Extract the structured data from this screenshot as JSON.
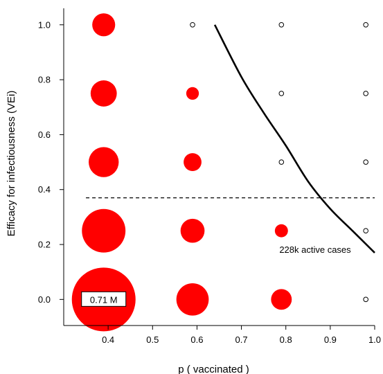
{
  "chart_data": {
    "type": "scatter",
    "title": "",
    "xlabel": "p ( vaccinated )",
    "ylabel": "Efficacy for infectiousness (VEi)",
    "xlim": [
      0.3,
      1.0
    ],
    "ylim": [
      -0.095,
      1.06
    ],
    "x_ticks": [
      "0.4",
      "0.5",
      "0.6",
      "0.7",
      "0.8",
      "0.9",
      "1.0"
    ],
    "y_ticks": [
      "0.0",
      "0.2",
      "0.4",
      "0.6",
      "0.8",
      "1.0"
    ],
    "grid": false,
    "colors": {
      "filled": "#ff0000",
      "open": "#000000",
      "curve": "#000000"
    },
    "size_encoding": "circle area proportional to active cases",
    "points": [
      {
        "x": 0.39,
        "y": 1.0,
        "cases_k": 92,
        "marker": "filled"
      },
      {
        "x": 0.39,
        "y": 0.75,
        "cases_k": 120,
        "marker": "filled"
      },
      {
        "x": 0.39,
        "y": 0.5,
        "cases_k": 158,
        "marker": "filled"
      },
      {
        "x": 0.39,
        "y": 0.25,
        "cases_k": 332,
        "marker": "filled"
      },
      {
        "x": 0.39,
        "y": 0.0,
        "cases_k": 710,
        "marker": "filled"
      },
      {
        "x": 0.59,
        "y": 1.0,
        "cases_k": 0,
        "marker": "open"
      },
      {
        "x": 0.59,
        "y": 0.75,
        "cases_k": 28,
        "marker": "filled"
      },
      {
        "x": 0.59,
        "y": 0.5,
        "cases_k": 56,
        "marker": "filled"
      },
      {
        "x": 0.59,
        "y": 0.25,
        "cases_k": 101,
        "marker": "filled"
      },
      {
        "x": 0.59,
        "y": 0.0,
        "cases_k": 183,
        "marker": "filled"
      },
      {
        "x": 0.79,
        "y": 1.0,
        "cases_k": 0,
        "marker": "open"
      },
      {
        "x": 0.79,
        "y": 0.75,
        "cases_k": 0,
        "marker": "open"
      },
      {
        "x": 0.79,
        "y": 0.5,
        "cases_k": 0,
        "marker": "open"
      },
      {
        "x": 0.79,
        "y": 0.25,
        "cases_k": 30,
        "marker": "filled"
      },
      {
        "x": 0.79,
        "y": 0.0,
        "cases_k": 75,
        "marker": "filled"
      },
      {
        "x": 0.98,
        "y": 1.0,
        "cases_k": 0,
        "marker": "open"
      },
      {
        "x": 0.98,
        "y": 0.75,
        "cases_k": 0,
        "marker": "open"
      },
      {
        "x": 0.98,
        "y": 0.5,
        "cases_k": 0,
        "marker": "open"
      },
      {
        "x": 0.98,
        "y": 0.25,
        "cases_k": 0,
        "marker": "open"
      },
      {
        "x": 0.98,
        "y": 0.0,
        "cases_k": 0,
        "marker": "open"
      }
    ],
    "threshold_curve": {
      "label": "228k active cases",
      "points": [
        [
          0.64,
          1.0
        ],
        [
          0.7,
          0.81
        ],
        [
          0.75,
          0.68
        ],
        [
          0.8,
          0.56
        ],
        [
          0.85,
          0.43
        ],
        [
          0.9,
          0.33
        ],
        [
          0.95,
          0.25
        ],
        [
          1.0,
          0.17
        ]
      ]
    },
    "dashed_line": {
      "y": 0.37,
      "x_from": 0.35,
      "x_to": 1.0
    },
    "annotations": [
      {
        "text": "0.71 M",
        "x": 0.39,
        "y": 0.0
      }
    ]
  }
}
